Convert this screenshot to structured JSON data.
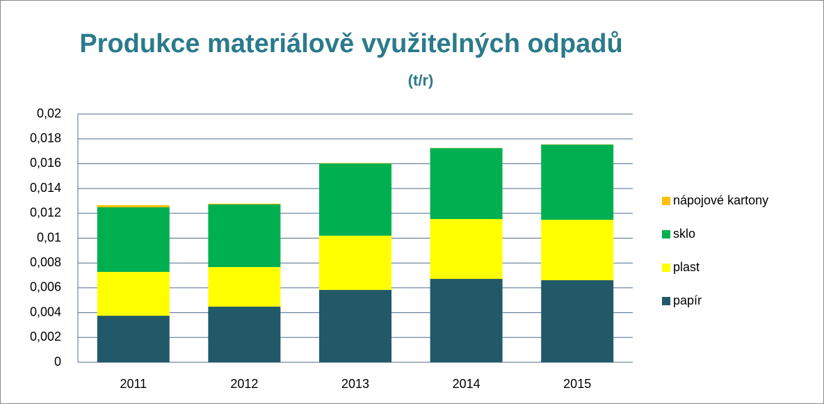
{
  "chart_data": {
    "type": "stacked_bar",
    "title": "Produkce materiálově využitelných  odpadů",
    "subtitle": "(t/r)",
    "categories": [
      "2011",
      "2012",
      "2013",
      "2014",
      "2015"
    ],
    "series": [
      {
        "name": "papír",
        "color": "#215968",
        "values": [
          0.00375,
          0.00448,
          0.00583,
          0.00672,
          0.00661
        ]
      },
      {
        "name": "plast",
        "color": "#ffff00",
        "values": [
          0.00353,
          0.00319,
          0.00437,
          0.00482,
          0.00487
        ]
      },
      {
        "name": "sklo",
        "color": "#00b050",
        "values": [
          0.00521,
          0.00505,
          0.00582,
          0.00571,
          0.00606
        ]
      },
      {
        "name": "nápojové  kartony",
        "color": "#ffc000",
        "values": [
          0.00017,
          6e-05,
          3e-05,
          2e-05,
          2e-05
        ]
      }
    ],
    "ylim": [
      0,
      0.02
    ],
    "yticks": [
      0,
      {
        "value": 0.002,
        "label": "0,002"
      },
      {
        "value": 0.004,
        "label": "0,004"
      },
      {
        "value": 0.006,
        "label": "0,006"
      },
      {
        "value": 0.008,
        "label": "0,008"
      },
      {
        "value": 0.01,
        "label": "0,01"
      },
      {
        "value": 0.012,
        "label": "0,012"
      },
      {
        "value": 0.014,
        "label": "0,014"
      },
      {
        "value": 0.016,
        "label": "0,016"
      },
      {
        "value": 0.018,
        "label": "0,018"
      },
      {
        "value": 0.02,
        "label": "0,02"
      }
    ],
    "grid": true,
    "legend": "right"
  }
}
